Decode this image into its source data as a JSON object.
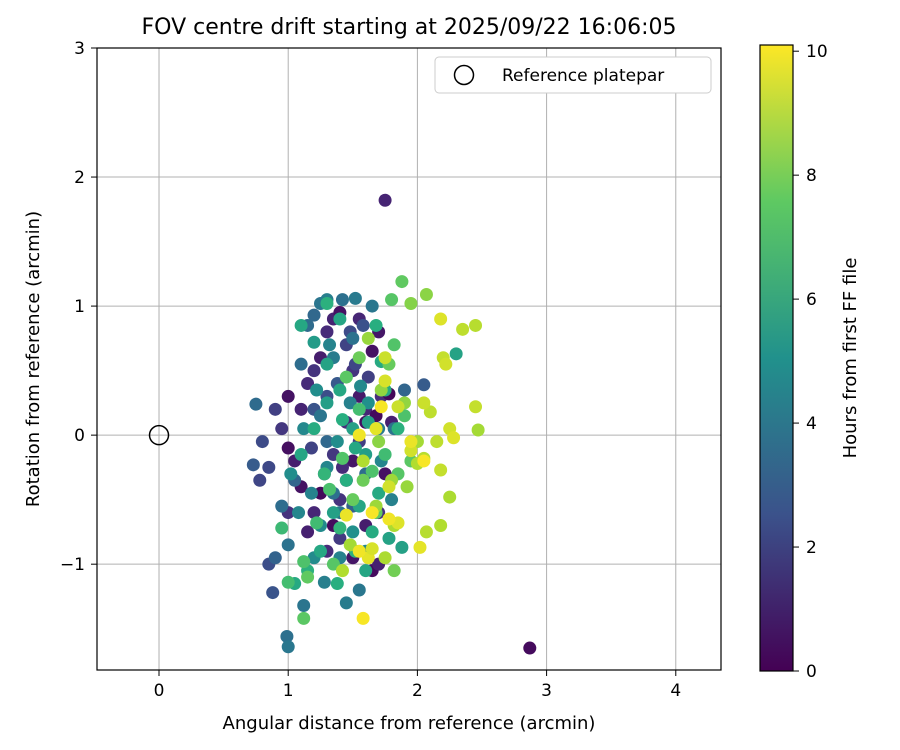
{
  "chart_data": {
    "type": "scatter",
    "title": "FOV centre drift starting at 2025/09/22 16:06:05",
    "xlabel": "Angular distance from reference (arcmin)",
    "ylabel": "Rotation from reference (arcmin)",
    "xlim": [
      -0.48,
      4.35
    ],
    "ylim": [
      -1.82,
      3.0
    ],
    "xticks": [
      0,
      1,
      2,
      3,
      4
    ],
    "xtick_labels": [
      "0",
      "1",
      "2",
      "3",
      "4"
    ],
    "yticks": [
      -1,
      0,
      1,
      2,
      3
    ],
    "ytick_labels": [
      "−1",
      "0",
      "1",
      "2",
      "3"
    ],
    "grid": true,
    "legend": {
      "placement": "top-right",
      "entries": [
        "Reference platepar"
      ]
    },
    "reference_point": {
      "x": 0,
      "y": 0,
      "label": "Reference platepar"
    },
    "colorbar": {
      "label": "Hours from first FF file",
      "range": [
        0,
        10.1
      ],
      "ticks": [
        0,
        2,
        4,
        6,
        8,
        10
      ],
      "tick_labels": [
        "0",
        "2",
        "4",
        "6",
        "8",
        "10"
      ],
      "colormap": "viridis"
    },
    "points": [
      [
        1.75,
        1.82,
        1.0
      ],
      [
        2.87,
        -1.65,
        0.3
      ],
      [
        1.0,
        0.3,
        0.5
      ],
      [
        1.1,
        0.2,
        1.0
      ],
      [
        1.15,
        0.4,
        1.2
      ],
      [
        1.2,
        0.5,
        1.5
      ],
      [
        1.25,
        0.6,
        0.8
      ],
      [
        1.3,
        0.8,
        1.2
      ],
      [
        1.35,
        0.9,
        1.0
      ],
      [
        1.4,
        0.95,
        0.5
      ],
      [
        1.45,
        0.7,
        2.0
      ],
      [
        1.5,
        0.5,
        1.5
      ],
      [
        1.55,
        0.3,
        0.7
      ],
      [
        1.6,
        0.2,
        1.1
      ],
      [
        1.65,
        0.65,
        0.5
      ],
      [
        1.7,
        0.8,
        0.6
      ],
      [
        1.72,
        0.3,
        1.3
      ],
      [
        1.78,
        0.32,
        0.2
      ],
      [
        1.8,
        0.1,
        0.9
      ],
      [
        1.6,
        0.1,
        0.4
      ],
      [
        1.55,
        -0.05,
        1.8
      ],
      [
        1.5,
        -0.2,
        0.6
      ],
      [
        1.45,
        -0.35,
        0.4
      ],
      [
        1.4,
        -0.5,
        1.5
      ],
      [
        1.35,
        -0.7,
        0.3
      ],
      [
        1.3,
        -0.9,
        1.2
      ],
      [
        1.6,
        -0.7,
        0.8
      ],
      [
        1.65,
        -1.05,
        0.3
      ],
      [
        1.7,
        -1.0,
        0.9
      ],
      [
        1.5,
        -0.95,
        0.6
      ],
      [
        1.4,
        -0.8,
        1.7
      ],
      [
        1.2,
        -0.6,
        1.1
      ],
      [
        1.1,
        -0.4,
        0.5
      ],
      [
        1.05,
        -0.2,
        0.8
      ],
      [
        1.0,
        -0.1,
        0.4
      ],
      [
        0.95,
        0.05,
        1.6
      ],
      [
        0.9,
        0.2,
        1.9
      ],
      [
        0.85,
        -0.25,
        2.2
      ],
      [
        0.8,
        -0.05,
        2.3
      ],
      [
        0.78,
        -0.35,
        2.1
      ],
      [
        1.0,
        -0.6,
        1.4
      ],
      [
        1.15,
        -0.75,
        0.9
      ],
      [
        1.25,
        -0.45,
        0.2
      ],
      [
        1.35,
        -0.15,
        1.6
      ],
      [
        1.45,
        0.1,
        1.3
      ],
      [
        1.52,
        0.55,
        2.1
      ],
      [
        1.62,
        0.45,
        1.9
      ],
      [
        1.68,
        0.15,
        0.3
      ],
      [
        1.75,
        -0.3,
        0.5
      ],
      [
        1.7,
        -0.6,
        1.4
      ],
      [
        1.3,
        0.3,
        2.4
      ],
      [
        1.2,
        0.2,
        2.6
      ],
      [
        1.18,
        -0.1,
        2.0
      ],
      [
        1.28,
        -0.3,
        2.5
      ],
      [
        1.42,
        -0.25,
        1.2
      ],
      [
        1.55,
        0.9,
        1.1
      ],
      [
        1.48,
        0.8,
        2.3
      ],
      [
        1.58,
        0.85,
        2.5
      ],
      [
        1.38,
        0.4,
        2.8
      ],
      [
        0.75,
        0.24,
        3.5
      ],
      [
        0.73,
        -0.23,
        2.9
      ],
      [
        0.88,
        -1.22,
        2.6
      ],
      [
        0.85,
        -1.0,
        2.4
      ],
      [
        0.9,
        -0.95,
        3.2
      ],
      [
        0.95,
        -0.55,
        3.6
      ],
      [
        1.0,
        -0.85,
        3.8
      ],
      [
        1.05,
        -0.35,
        3.3
      ],
      [
        1.1,
        0.55,
        3.6
      ],
      [
        1.15,
        0.85,
        3.5
      ],
      [
        1.2,
        0.93,
        3.4
      ],
      [
        1.25,
        1.02,
        3.9
      ],
      [
        1.3,
        1.05,
        4.3
      ],
      [
        1.42,
        1.05,
        3.7
      ],
      [
        1.52,
        1.06,
        4.1
      ],
      [
        1.65,
        1.0,
        4.0
      ],
      [
        1.5,
        0.75,
        3.8
      ],
      [
        1.35,
        0.6,
        4.2
      ],
      [
        1.25,
        0.15,
        3.9
      ],
      [
        1.3,
        -0.05,
        3.4
      ],
      [
        1.35,
        -0.45,
        3.7
      ],
      [
        1.4,
        -0.6,
        3.9
      ],
      [
        1.5,
        -0.55,
        3.1
      ],
      [
        1.6,
        -0.3,
        3.6
      ],
      [
        1.7,
        0.05,
        4.1
      ],
      [
        1.82,
        0.05,
        3.8
      ],
      [
        1.9,
        0.35,
        3.3
      ],
      [
        2.05,
        0.39,
        2.9
      ],
      [
        0.99,
        -1.56,
        3.7
      ],
      [
        1.0,
        -1.64,
        4.0
      ],
      [
        1.12,
        -1.32,
        3.9
      ],
      [
        1.45,
        -1.3,
        4.2
      ],
      [
        1.55,
        -1.2,
        4.0
      ],
      [
        1.18,
        -0.45,
        4.5
      ],
      [
        1.25,
        -0.7,
        4.8
      ],
      [
        1.3,
        -0.25,
        4.6
      ],
      [
        1.38,
        -0.05,
        4.9
      ],
      [
        1.48,
        0.25,
        4.4
      ],
      [
        1.56,
        0.38,
        4.7
      ],
      [
        1.62,
        0.25,
        5.0
      ],
      [
        1.72,
        -0.2,
        4.6
      ],
      [
        1.8,
        -0.5,
        4.4
      ],
      [
        1.6,
        -0.9,
        4.7
      ],
      [
        1.5,
        -0.75,
        5.0
      ],
      [
        1.4,
        -0.95,
        4.5
      ],
      [
        1.28,
        -1.14,
        4.3
      ],
      [
        1.2,
        -0.95,
        4.8
      ],
      [
        1.08,
        -0.6,
        4.6
      ],
      [
        1.02,
        -0.3,
        4.9
      ],
      [
        1.12,
        0.05,
        4.7
      ],
      [
        1.22,
        0.35,
        4.9
      ],
      [
        1.32,
        0.7,
        4.5
      ],
      [
        1.2,
        0.72,
        5.5
      ],
      [
        1.3,
        0.55,
        5.8
      ],
      [
        1.4,
        0.35,
        6.0
      ],
      [
        1.5,
        0.05,
        5.7
      ],
      [
        1.6,
        -0.15,
        5.6
      ],
      [
        1.7,
        -0.45,
        6.1
      ],
      [
        1.78,
        -0.8,
        5.8
      ],
      [
        1.65,
        -0.75,
        6.2
      ],
      [
        1.55,
        -0.55,
        5.9
      ],
      [
        1.45,
        -0.35,
        6.3
      ],
      [
        1.35,
        -0.6,
        5.7
      ],
      [
        1.25,
        -0.9,
        6.0
      ],
      [
        1.15,
        -1.05,
        6.4
      ],
      [
        1.05,
        -1.15,
        6.1
      ],
      [
        1.1,
        -0.15,
        5.9
      ],
      [
        1.2,
        0.05,
        6.2
      ],
      [
        1.3,
        0.25,
        5.6
      ],
      [
        1.42,
        0.12,
        6.3
      ],
      [
        1.52,
        -0.1,
        6.0
      ],
      [
        1.62,
        0.1,
        5.8
      ],
      [
        1.75,
        0.35,
        6.2
      ],
      [
        1.85,
        0.05,
        6.4
      ],
      [
        1.72,
        0.57,
        6.1
      ],
      [
        1.68,
        0.85,
        6.3
      ],
      [
        1.4,
        0.9,
        5.9
      ],
      [
        1.3,
        1.02,
        6.4
      ],
      [
        2.3,
        0.63,
        5.8
      ],
      [
        1.88,
        -0.87,
        5.7
      ],
      [
        1.6,
        -1.05,
        5.9
      ],
      [
        1.38,
        -1.15,
        6.3
      ],
      [
        1.1,
        0.85,
        6.0
      ],
      [
        1.28,
        -0.3,
        6.6
      ],
      [
        1.4,
        -0.72,
        6.6
      ],
      [
        1.52,
        -0.9,
        6.5
      ],
      [
        0.95,
        -0.72,
        6.8
      ],
      [
        1.0,
        -1.14,
        7.0
      ],
      [
        1.12,
        -0.98,
        7.2
      ],
      [
        1.22,
        -0.68,
        6.9
      ],
      [
        1.32,
        -0.42,
        7.1
      ],
      [
        1.42,
        -0.18,
        7.3
      ],
      [
        1.55,
        0.2,
        7.0
      ],
      [
        1.65,
        -0.28,
        7.2
      ],
      [
        1.75,
        -0.15,
        6.9
      ],
      [
        1.82,
        0.7,
        7.3
      ],
      [
        1.85,
        -0.3,
        7.4
      ],
      [
        1.9,
        0.15,
        7.2
      ],
      [
        1.95,
        -0.2,
        7.5
      ],
      [
        1.8,
        1.05,
        7.4
      ],
      [
        1.12,
        -1.42,
        7.5
      ],
      [
        1.15,
        -1.1,
        7.6
      ],
      [
        1.35,
        -1.0,
        7.4
      ],
      [
        1.5,
        -0.5,
        7.7
      ],
      [
        1.58,
        -0.35,
        7.8
      ],
      [
        1.68,
        -0.6,
        7.6
      ],
      [
        1.45,
        0.45,
        7.5
      ],
      [
        1.55,
        0.6,
        7.8
      ],
      [
        1.78,
        0.55,
        7.7
      ],
      [
        1.88,
        1.19,
        7.6
      ],
      [
        1.82,
        -1.05,
        7.9
      ],
      [
        1.95,
        1.02,
        8.2
      ],
      [
        2.07,
        1.09,
        8.3
      ],
      [
        1.72,
        0.35,
        8.4
      ],
      [
        1.62,
        0.75,
        8.5
      ],
      [
        1.7,
        -0.05,
        8.3
      ],
      [
        1.8,
        -0.35,
        8.6
      ],
      [
        1.9,
        0.25,
        8.4
      ],
      [
        2.0,
        -0.05,
        8.7
      ],
      [
        1.92,
        -0.4,
        8.5
      ],
      [
        1.82,
        -0.7,
        8.8
      ],
      [
        1.68,
        -0.55,
        8.6
      ],
      [
        1.58,
        -0.2,
        8.9
      ],
      [
        1.48,
        -0.85,
        8.7
      ],
      [
        1.42,
        -1.05,
        8.9
      ],
      [
        1.75,
        -0.95,
        8.8
      ],
      [
        2.0,
        -0.22,
        8.9
      ],
      [
        2.05,
        -0.18,
        9.0
      ],
      [
        2.1,
        0.18,
        9.1
      ],
      [
        2.07,
        -0.75,
        9.0
      ],
      [
        2.18,
        -0.7,
        8.9
      ],
      [
        2.25,
        -0.48,
        8.8
      ],
      [
        2.18,
        -0.27,
        9.2
      ],
      [
        2.15,
        -0.05,
        9.1
      ],
      [
        2.05,
        0.25,
        9.3
      ],
      [
        1.95,
        -0.12,
        9.4
      ],
      [
        1.85,
        0.22,
        9.3
      ],
      [
        1.75,
        0.42,
        9.5
      ],
      [
        1.75,
        0.6,
        9.3
      ],
      [
        2.2,
        0.6,
        9.2
      ],
      [
        2.22,
        0.55,
        9.4
      ],
      [
        2.35,
        0.82,
        9.1
      ],
      [
        2.45,
        0.85,
        9.0
      ],
      [
        2.45,
        0.22,
        9.2
      ],
      [
        2.47,
        0.04,
        8.7
      ],
      [
        2.25,
        0.05,
        9.4
      ],
      [
        2.28,
        -0.02,
        9.6
      ],
      [
        2.18,
        0.9,
        9.6
      ],
      [
        1.95,
        -0.05,
        9.8
      ],
      [
        1.85,
        -0.68,
        9.6
      ],
      [
        1.78,
        -0.65,
        9.9
      ],
      [
        1.65,
        -0.6,
        10.0
      ],
      [
        1.62,
        -0.95,
        9.7
      ],
      [
        1.55,
        -0.9,
        9.9
      ],
      [
        1.58,
        -1.42,
        10.0
      ],
      [
        1.65,
        -0.88,
        9.5
      ],
      [
        2.02,
        -0.87,
        9.7
      ],
      [
        2.05,
        -0.2,
        10.0
      ],
      [
        1.72,
        0.22,
        10.0
      ],
      [
        1.55,
        0.0,
        9.9
      ],
      [
        1.45,
        -0.62,
        9.8
      ],
      [
        1.68,
        0.05,
        9.7
      ],
      [
        1.78,
        -0.4,
        9.4
      ]
    ]
  }
}
